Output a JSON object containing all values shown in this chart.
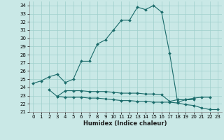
{
  "title": "",
  "xlabel": "Humidex (Indice chaleur)",
  "xlim": [
    -0.5,
    23.5
  ],
  "ylim": [
    21,
    34.5
  ],
  "yticks": [
    21,
    22,
    23,
    24,
    25,
    26,
    27,
    28,
    29,
    30,
    31,
    32,
    33,
    34
  ],
  "xticks": [
    0,
    1,
    2,
    3,
    4,
    5,
    6,
    7,
    8,
    9,
    10,
    11,
    12,
    13,
    14,
    15,
    16,
    17,
    18,
    19,
    20,
    21,
    22,
    23
  ],
  "background_color": "#c9e8e6",
  "grid_color": "#9ecfcc",
  "line_color": "#1a6b6a",
  "series": [
    {
      "x": [
        0,
        1,
        2,
        3,
        4,
        5,
        6,
        7,
        8,
        9,
        10,
        11,
        12,
        13,
        14,
        15,
        16,
        17,
        18,
        19,
        20,
        21,
        22
      ],
      "y": [
        24.5,
        24.8,
        25.3,
        25.6,
        24.6,
        25.0,
        27.2,
        27.2,
        29.3,
        29.8,
        31.0,
        32.2,
        32.2,
        33.8,
        33.5,
        34.0,
        33.2,
        28.2,
        22.2,
        22.5,
        22.7,
        22.8,
        22.8
      ]
    },
    {
      "x": [
        2,
        3,
        4,
        5,
        6,
        7,
        8,
        9,
        10,
        11,
        12,
        13,
        14,
        15,
        16,
        17,
        18,
        19,
        20
      ],
      "y": [
        23.7,
        22.9,
        23.6,
        23.6,
        23.6,
        23.5,
        23.5,
        23.5,
        23.4,
        23.3,
        23.3,
        23.3,
        23.2,
        23.2,
        23.1,
        22.3,
        22.5,
        22.5,
        22.5
      ]
    },
    {
      "x": [
        3,
        4,
        5,
        6,
        7,
        8,
        9,
        10,
        11,
        12,
        13,
        14,
        15,
        16,
        17,
        18,
        19,
        20,
        21,
        22,
        23
      ],
      "y": [
        22.9,
        22.8,
        22.8,
        22.8,
        22.7,
        22.7,
        22.6,
        22.5,
        22.4,
        22.4,
        22.3,
        22.3,
        22.2,
        22.2,
        22.2,
        22.1,
        21.9,
        21.8,
        21.5,
        21.3,
        21.3
      ]
    }
  ]
}
